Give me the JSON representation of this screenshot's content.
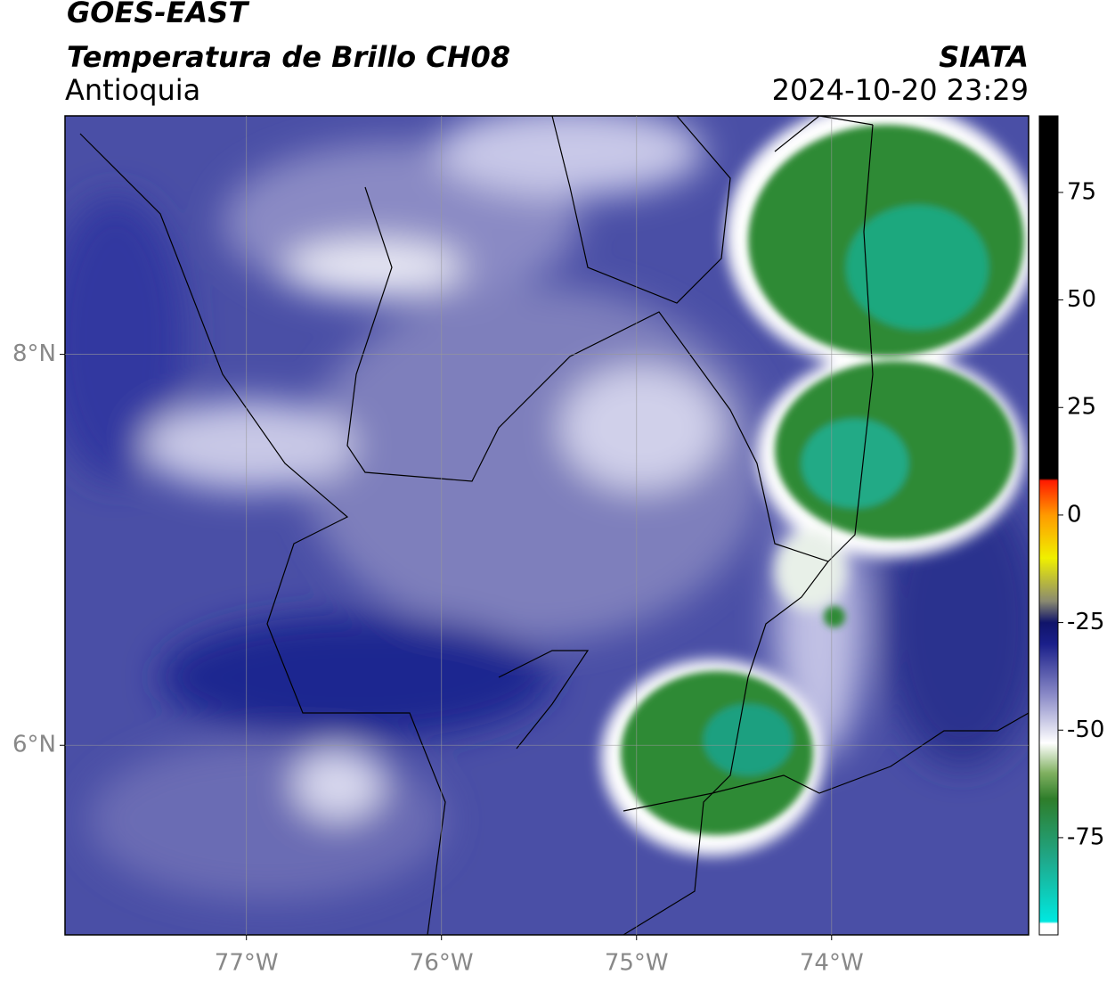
{
  "chart_data": {
    "type": "map",
    "title": "GOES-EAST",
    "subtitle": "Temperatura de Brillo CH08",
    "region": "Antioquia",
    "source": "SIATA",
    "datetime": "2024-10-20 23:29",
    "xlim": [
      -77.93,
      -72.99
    ],
    "ylim": [
      5.03,
      9.22
    ],
    "xticks": [
      {
        "value": -77,
        "label": "77°W"
      },
      {
        "value": -76,
        "label": "76°W"
      },
      {
        "value": -75,
        "label": "75°W"
      },
      {
        "value": -74,
        "label": "74°W"
      }
    ],
    "yticks": [
      {
        "value": 6,
        "label": "6°N"
      },
      {
        "value": 8,
        "label": "8°N"
      }
    ],
    "grid": true,
    "colorbar": {
      "lim": [
        -97.6,
        92.8
      ],
      "ticks": [
        75,
        50,
        25,
        0,
        -25,
        -50,
        -75
      ],
      "stops": [
        {
          "value": -97.6,
          "color": "#ffffff"
        },
        {
          "value": -95,
          "color": "#ffffff"
        },
        {
          "value": -94.5,
          "color": "#00e8e0"
        },
        {
          "value": -80,
          "color": "#1fa88a"
        },
        {
          "value": -66,
          "color": "#2e7d2a"
        },
        {
          "value": -60,
          "color": "#7fb060"
        },
        {
          "value": -53,
          "color": "#ffffff"
        },
        {
          "value": -42,
          "color": "#8c8cc8"
        },
        {
          "value": -30,
          "color": "#1a1f8a"
        },
        {
          "value": -25,
          "color": "#10146a"
        },
        {
          "value": -20,
          "color": "#8a8a70"
        },
        {
          "value": -10,
          "color": "#f0f000"
        },
        {
          "value": 0,
          "color": "#ff9a00"
        },
        {
          "value": 8,
          "color": "#ff1a00"
        },
        {
          "value": 8.5,
          "color": "#000000"
        },
        {
          "value": 92.8,
          "color": "#000000"
        }
      ]
    }
  }
}
